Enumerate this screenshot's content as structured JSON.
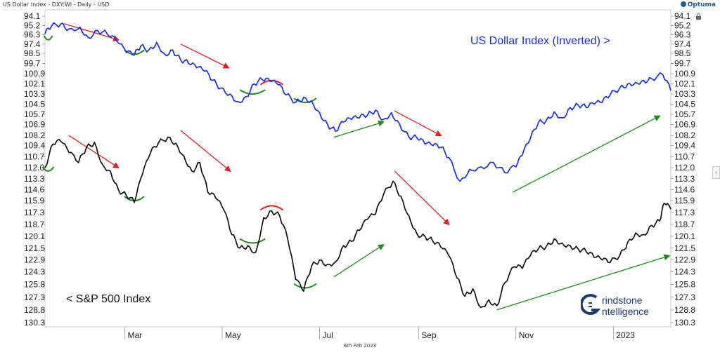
{
  "header": {
    "title": "US Dollar Index - DXY:WI - Daily - USD",
    "brand": "Optuma",
    "footer_date": "6th Feb 2023"
  },
  "colors": {
    "usd": "#1a2ee0",
    "spx": "#111111",
    "down_arrow": "#e02020",
    "up_arrow": "#1e8a1e",
    "trough_arc": "#1e8a1e",
    "peak_arc": "#e02020",
    "grid": "#dddddd"
  },
  "logo": {
    "line1": "rindstone",
    "line2": "ntelligence",
    "icon": "grindstone-g-logo"
  },
  "chart_data": {
    "type": "line",
    "y_axis": {
      "inverted": true,
      "ticks": [
        "94.1",
        "95.2",
        "96.3",
        "97.4",
        "98.5",
        "99.7",
        "100.9",
        "102.1",
        "103.3",
        "104.5",
        "105.7",
        "106.9",
        "108.2",
        "109.4",
        "110.7",
        "112.0",
        "113.3",
        "114.6",
        "115.9",
        "117.3",
        "118.7",
        "120.1",
        "121.5",
        "122.9",
        "124.3",
        "125.8",
        "127.3",
        "128.8",
        "130.3"
      ],
      "range": [
        94.1,
        130.3
      ],
      "side": "both"
    },
    "x_axis": {
      "ticks": [
        "Mar",
        "May",
        "Jul",
        "Sep",
        "Nov",
        "2023"
      ],
      "tick_dates": [
        "2022-03-01",
        "2022-05-01",
        "2022-07-01",
        "2022-09-01",
        "2022-11-01",
        "2023-01-01"
      ],
      "range": [
        "2022-01-10",
        "2023-02-06"
      ]
    },
    "grid": false,
    "series": [
      {
        "name": "US Dollar Index (Inverted) >",
        "dates": [
          "2022-01-10",
          "2022-01-14",
          "2022-01-20",
          "2022-01-25",
          "2022-02-01",
          "2022-02-06",
          "2022-02-12",
          "2022-02-18",
          "2022-02-24",
          "2022-03-02",
          "2022-03-07",
          "2022-03-11",
          "2022-03-16",
          "2022-03-21",
          "2022-03-26",
          "2022-03-31",
          "2022-04-05",
          "2022-04-10",
          "2022-04-15",
          "2022-04-20",
          "2022-04-25",
          "2022-04-30",
          "2022-05-06",
          "2022-05-11",
          "2022-05-16",
          "2022-05-21",
          "2022-05-26",
          "2022-05-31",
          "2022-06-05",
          "2022-06-10",
          "2022-06-16",
          "2022-06-21",
          "2022-06-26",
          "2022-07-01",
          "2022-07-06",
          "2022-07-11",
          "2022-07-16",
          "2022-07-21",
          "2022-07-26",
          "2022-07-31",
          "2022-08-05",
          "2022-08-10",
          "2022-08-15",
          "2022-08-20",
          "2022-08-26",
          "2022-08-31",
          "2022-09-05",
          "2022-09-10",
          "2022-09-15",
          "2022-09-20",
          "2022-09-27",
          "2022-10-03",
          "2022-10-10",
          "2022-10-18",
          "2022-10-25",
          "2022-11-01",
          "2022-11-05",
          "2022-11-10",
          "2022-11-15",
          "2022-11-20",
          "2022-11-25",
          "2022-11-30",
          "2022-12-05",
          "2022-12-10",
          "2022-12-15",
          "2022-12-20",
          "2022-12-25",
          "2022-12-30",
          "2023-01-05",
          "2023-01-10",
          "2023-01-15",
          "2023-01-20",
          "2023-01-25",
          "2023-02-01",
          "2023-02-06"
        ],
        "values": [
          96.2,
          95.3,
          95.0,
          95.6,
          95.4,
          96.6,
          95.8,
          96.2,
          97.1,
          98.4,
          98.7,
          97.6,
          98.1,
          97.2,
          98.6,
          98.1,
          99.3,
          99.7,
          100.2,
          100.6,
          101.7,
          102.6,
          103.3,
          104.2,
          103.6,
          102.1,
          101.6,
          101.8,
          102.2,
          103.4,
          104.3,
          103.7,
          104.1,
          105.5,
          106.9,
          107.7,
          106.6,
          106.3,
          106.1,
          105.8,
          105.2,
          106.3,
          105.5,
          106.8,
          108.4,
          108.5,
          109.2,
          109.4,
          109.6,
          110.8,
          113.6,
          112.2,
          111.9,
          111.4,
          112.6,
          111.9,
          110.5,
          108.6,
          106.7,
          106.4,
          105.4,
          106.1,
          104.9,
          104.6,
          104.9,
          104.5,
          104.3,
          103.4,
          102.6,
          102.1,
          101.9,
          101.7,
          101.5,
          101.0,
          102.9
        ]
      },
      {
        "name": "< S&P 500 Index",
        "dates": [
          "2022-01-10",
          "2022-01-15",
          "2022-01-20",
          "2022-01-25",
          "2022-01-31",
          "2022-02-05",
          "2022-02-10",
          "2022-02-15",
          "2022-02-20",
          "2022-02-25",
          "2022-03-02",
          "2022-03-07",
          "2022-03-12",
          "2022-03-17",
          "2022-03-22",
          "2022-03-28",
          "2022-04-02",
          "2022-04-07",
          "2022-04-12",
          "2022-04-17",
          "2022-04-22",
          "2022-04-27",
          "2022-05-02",
          "2022-05-07",
          "2022-05-12",
          "2022-05-17",
          "2022-05-22",
          "2022-05-27",
          "2022-06-01",
          "2022-06-06",
          "2022-06-11",
          "2022-06-16",
          "2022-06-21",
          "2022-06-26",
          "2022-07-01",
          "2022-07-06",
          "2022-07-11",
          "2022-07-16",
          "2022-07-21",
          "2022-07-26",
          "2022-07-31",
          "2022-08-05",
          "2022-08-10",
          "2022-08-16",
          "2022-08-21",
          "2022-08-26",
          "2022-08-31",
          "2022-09-05",
          "2022-09-10",
          "2022-09-15",
          "2022-09-20",
          "2022-09-25",
          "2022-09-30",
          "2022-10-05",
          "2022-10-10",
          "2022-10-15",
          "2022-10-20",
          "2022-10-25",
          "2022-10-31",
          "2022-11-05",
          "2022-11-10",
          "2022-11-15",
          "2022-11-20",
          "2022-11-25",
          "2022-11-30",
          "2022-12-05",
          "2022-12-10",
          "2022-12-15",
          "2022-12-20",
          "2022-12-25",
          "2022-12-30",
          "2023-01-05",
          "2023-01-10",
          "2023-01-15",
          "2023-01-20",
          "2023-01-25",
          "2023-01-30",
          "2023-02-02",
          "2023-02-06"
        ],
        "values": [
          112.0,
          109.2,
          108.9,
          110.2,
          111.4,
          109.6,
          109.0,
          111.6,
          112.4,
          114.6,
          115.3,
          116.1,
          112.8,
          110.3,
          109.1,
          108.4,
          109.1,
          110.6,
          112.4,
          111.4,
          114.9,
          115.6,
          117.0,
          119.9,
          121.5,
          121.2,
          122.0,
          117.9,
          117.1,
          117.7,
          120.4,
          125.2,
          126.6,
          123.6,
          122.9,
          123.4,
          123.1,
          121.2,
          120.7,
          119.4,
          118.1,
          117.5,
          115.2,
          113.6,
          115.4,
          117.7,
          119.8,
          120.1,
          120.7,
          121.4,
          122.4,
          125.0,
          127.2,
          126.3,
          128.5,
          127.6,
          128.3,
          125.6,
          123.7,
          123.9,
          122.4,
          121.6,
          121.3,
          120.4,
          120.9,
          121.2,
          121.6,
          121.9,
          122.6,
          122.9,
          123.2,
          122.4,
          120.8,
          119.7,
          119.9,
          118.8,
          118.3,
          116.2,
          116.9
        ]
      }
    ],
    "annotations": {
      "down_arrows": [
        {
          "series": "usd",
          "from": [
            "2022-01-22",
            95.0
          ],
          "to": [
            "2022-02-25",
            96.9
          ]
        },
        {
          "series": "usd",
          "from": [
            "2022-04-05",
            97.4
          ],
          "to": [
            "2022-05-05",
            100.2
          ]
        },
        {
          "series": "usd",
          "from": [
            "2022-08-17",
            105.3
          ],
          "to": [
            "2022-09-15",
            108.2
          ]
        },
        {
          "series": "spx",
          "from": [
            "2022-01-25",
            108.2
          ],
          "to": [
            "2022-02-25",
            112.0
          ]
        },
        {
          "series": "spx",
          "from": [
            "2022-04-05",
            107.6
          ],
          "to": [
            "2022-05-06",
            112.4
          ]
        },
        {
          "series": "spx",
          "from": [
            "2022-08-17",
            112.4
          ],
          "to": [
            "2022-09-20",
            118.7
          ]
        }
      ],
      "up_arrows": [
        {
          "series": "usd",
          "from": [
            "2022-07-10",
            108.4
          ],
          "to": [
            "2022-08-10",
            106.6
          ]
        },
        {
          "series": "usd",
          "from": [
            "2022-10-30",
            114.9
          ],
          "to": [
            "2023-01-30",
            105.9
          ]
        },
        {
          "series": "spx",
          "from": [
            "2022-07-10",
            124.9
          ],
          "to": [
            "2022-08-10",
            121.1
          ]
        },
        {
          "series": "spx",
          "from": [
            "2022-10-20",
            128.8
          ],
          "to": [
            "2023-02-05",
            122.4
          ]
        }
      ],
      "trough_arcs": [
        {
          "series": "usd",
          "center": [
            "2022-01-12",
            96.9
          ]
        },
        {
          "series": "usd",
          "center": [
            "2022-03-07",
            98.6
          ]
        },
        {
          "series": "usd",
          "center": [
            "2022-05-20",
            103.3
          ]
        },
        {
          "series": "usd",
          "center": [
            "2022-06-22",
            104.3
          ]
        },
        {
          "series": "spx",
          "center": [
            "2022-01-12",
            112.4
          ]
        },
        {
          "series": "spx",
          "center": [
            "2022-03-07",
            115.9
          ]
        },
        {
          "series": "spx",
          "center": [
            "2022-05-20",
            120.9
          ]
        },
        {
          "series": "spx",
          "center": [
            "2022-06-22",
            126.2
          ]
        }
      ],
      "peak_arcs": [
        {
          "series": "usd",
          "center": [
            "2022-06-01",
            101.7
          ]
        },
        {
          "series": "spx",
          "center": [
            "2022-06-01",
            116.5
          ]
        }
      ]
    }
  }
}
